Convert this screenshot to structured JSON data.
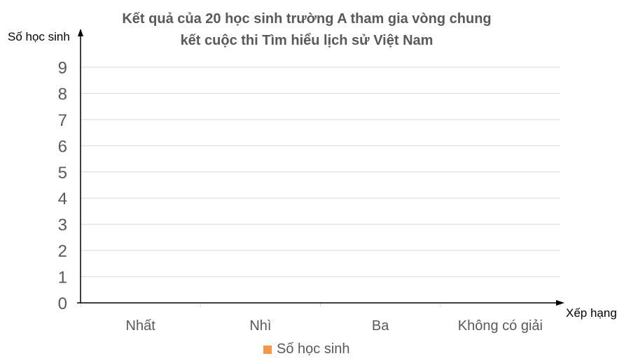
{
  "chart_data": {
    "type": "bar",
    "title_lines": [
      "Kết quả của 20 học sinh trường A tham gia vòng chung",
      "kết cuộc thi Tìm hiểu lịch sử Việt Nam"
    ],
    "ylabel": "Số học sinh",
    "xlabel": "Xếp hạng",
    "categories": [
      "Nhất",
      "Nhì",
      "Ba",
      "Không có giải"
    ],
    "series": [
      {
        "name": "Số học sinh",
        "values": [
          null,
          null,
          null,
          null
        ],
        "color": "#F79646"
      }
    ],
    "ylim": [
      0,
      9
    ],
    "yticks": [
      0,
      1,
      2,
      3,
      4,
      5,
      6,
      7,
      8,
      9
    ],
    "grid": true,
    "legend_position": "bottom"
  }
}
